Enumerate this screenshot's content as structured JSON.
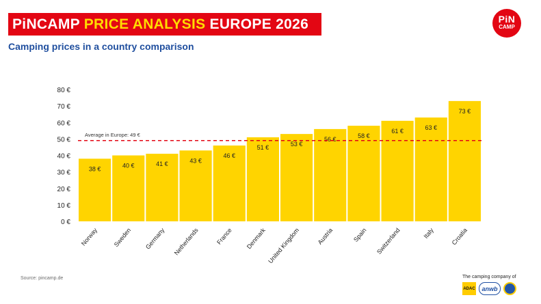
{
  "header": {
    "brand": "PiNCAMP",
    "highlight": "PRICE ANALYSIS",
    "rest": "EUROPE 2026",
    "logo_line1": "PiN",
    "logo_line2": "CAMP",
    "subtitle": "Camping prices in a country comparison"
  },
  "footer": {
    "source": "Source: pincamp.de",
    "company": "The camping company of",
    "partner1": "ADAC",
    "partner2": "anwb"
  },
  "colors": {
    "bar": "#ffd400",
    "average_line": "#e30613",
    "banner": "#e30613",
    "title_blue": "#1f4e9e"
  },
  "chart_data": {
    "type": "bar",
    "title": "Camping prices in a country comparison",
    "categories": [
      "Norway",
      "Sweden",
      "Germany",
      "Netherlands",
      "France",
      "Denmark",
      "United Kingdom",
      "Austria",
      "Spain",
      "Switzerland",
      "Italy",
      "Croatia"
    ],
    "values": [
      38,
      40,
      41,
      43,
      46,
      51,
      53,
      56,
      58,
      61,
      63,
      73
    ],
    "value_labels": [
      "38 €",
      "40 €",
      "41 €",
      "43 €",
      "46 €",
      "51 €",
      "53 €",
      "56 €",
      "58 €",
      "61 €",
      "63 €",
      "73 €"
    ],
    "yticks": [
      0,
      10,
      20,
      30,
      40,
      50,
      60,
      70,
      80
    ],
    "ytick_labels": [
      "0 €",
      "10 €",
      "20 €",
      "30 €",
      "40 €",
      "50 €",
      "60 €",
      "70 €",
      "80 €"
    ],
    "ylim": [
      0,
      80
    ],
    "xlabel": "",
    "ylabel": "",
    "grid": false,
    "average": {
      "value": 49,
      "label": "Average in Europe: 49 €"
    }
  }
}
